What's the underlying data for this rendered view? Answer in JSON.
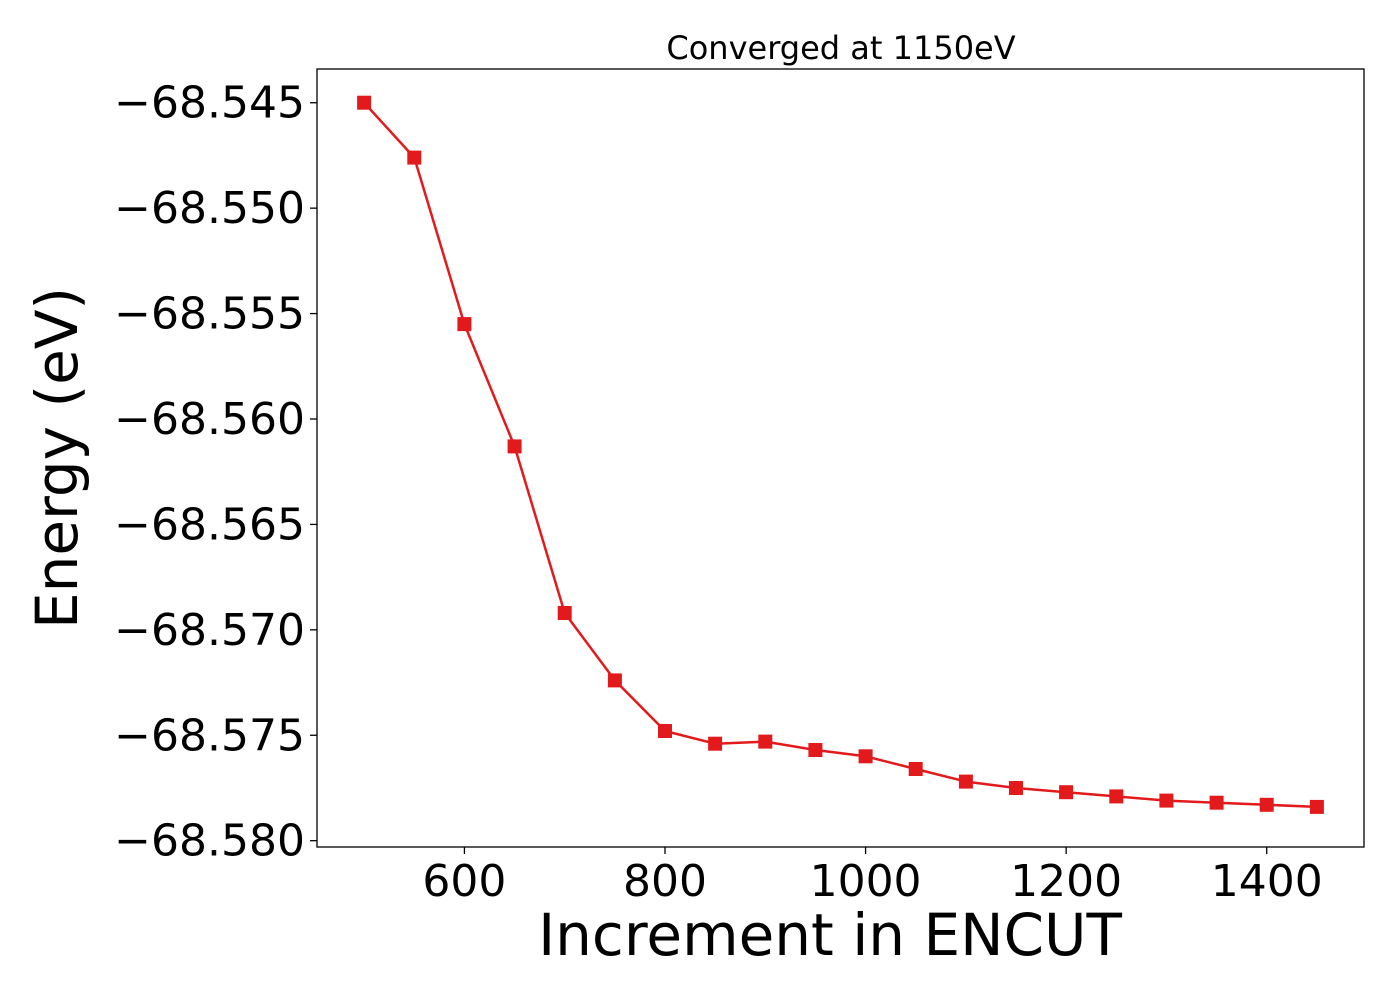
{
  "chart_data": {
    "type": "line",
    "title": "Converged at 1150eV",
    "xlabel": "Increment in ENCUT",
    "ylabel": "Energy (eV)",
    "xlim": [
      453,
      1497
    ],
    "ylim": [
      -68.5803,
      -68.5434
    ],
    "xticks": [
      600,
      800,
      1000,
      1200,
      1400
    ],
    "xtick_labels": [
      "600",
      "800",
      "1000",
      "1200",
      "1400"
    ],
    "yticks": [
      -68.545,
      -68.55,
      -68.555,
      -68.56,
      -68.565,
      -68.57,
      -68.575,
      -68.58
    ],
    "ytick_labels": [
      "−68.545",
      "−68.550",
      "−68.555",
      "−68.560",
      "−68.565",
      "−68.570",
      "−68.575",
      "−68.580"
    ],
    "grid": false,
    "series": [
      {
        "color": "#e31a1c",
        "marker": "square",
        "x": [
          500,
          550,
          600,
          650,
          700,
          750,
          800,
          850,
          900,
          950,
          1000,
          1050,
          1100,
          1150,
          1200,
          1250,
          1300,
          1350,
          1400,
          1450
        ],
        "y": [
          -68.545,
          -68.5476,
          -68.5555,
          -68.5613,
          -68.5692,
          -68.5724,
          -68.5748,
          -68.5754,
          -68.5753,
          -68.5757,
          -68.576,
          -68.5766,
          -68.5772,
          -68.5775,
          -68.5777,
          -68.5779,
          -68.5781,
          -68.5782,
          -68.5783,
          -68.5784
        ]
      }
    ]
  }
}
